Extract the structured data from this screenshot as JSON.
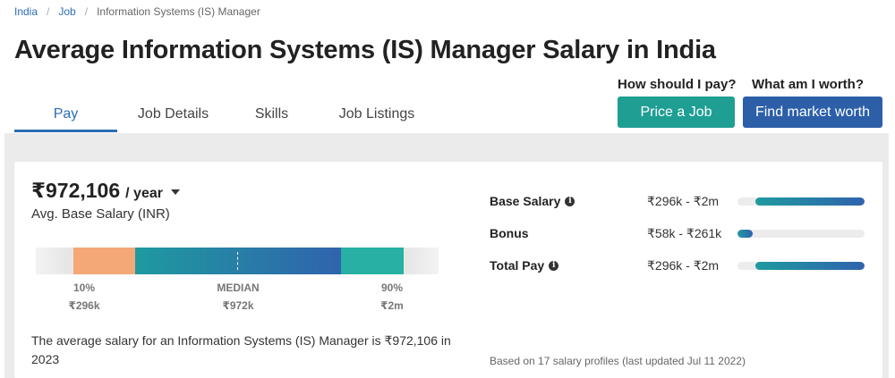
{
  "breadcrumb": {
    "items": [
      "India",
      "Job",
      "Information Systems (IS) Manager"
    ]
  },
  "page_title": "Average Information Systems (IS) Manager Salary in India",
  "tabs": [
    {
      "label": "Pay",
      "active": true
    },
    {
      "label": "Job Details",
      "active": false
    },
    {
      "label": "Skills",
      "active": false
    },
    {
      "label": "Job Listings",
      "active": false
    }
  ],
  "cta": {
    "price_question": "How should I pay?",
    "price_button": "Price a Job",
    "worth_question": "What am I worth?",
    "worth_button": "Find market worth"
  },
  "salary": {
    "amount": "₹972,106",
    "period": "/ year",
    "subtitle": "Avg. Base Salary (INR)"
  },
  "range": {
    "low_label": "10%",
    "low_value": "₹296k",
    "median_label": "MEDIAN",
    "median_value": "₹972k",
    "high_label": "90%",
    "high_value": "₹2m"
  },
  "description": "The average salary for an Information Systems (IS) Manager is ₹972,106 in 2023",
  "pay_breakdown": [
    {
      "name": "Base Salary",
      "has_info": true,
      "range": "₹296k - ₹2m",
      "fill_start": 0.14,
      "fill_end": 1.0
    },
    {
      "name": "Bonus",
      "has_info": false,
      "range": "₹58k - ₹261k",
      "fill_start": 0.0,
      "fill_end": 0.12
    },
    {
      "name": "Total Pay",
      "has_info": true,
      "range": "₹296k - ₹2m",
      "fill_start": 0.14,
      "fill_end": 1.0
    }
  ],
  "footnote": "Based on 17 salary profiles (last updated Jul 11 2022)",
  "colors": {
    "accent_blue": "#2c6db5",
    "button_teal": "#1f9e93",
    "button_blue": "#2c5fa8",
    "range_low": "#f5a877",
    "range_high": "#27b0a3"
  }
}
